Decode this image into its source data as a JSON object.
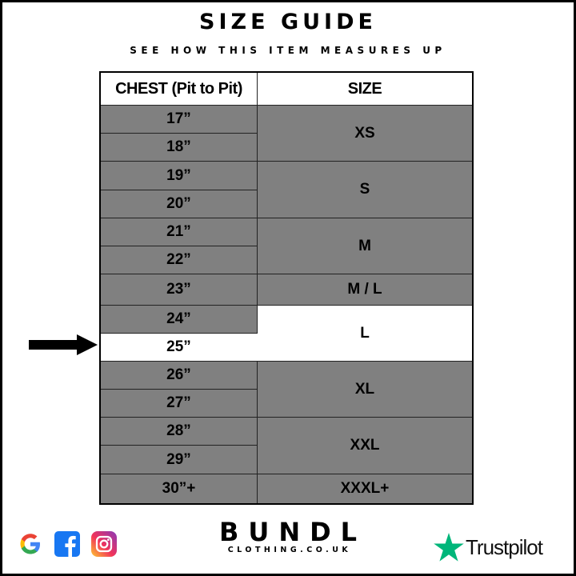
{
  "header": {
    "title": "SIZE GUIDE",
    "subtitle": "SEE HOW THIS ITEM MEASURES UP"
  },
  "table": {
    "columns": [
      "CHEST (Pit to Pit)",
      "SIZE"
    ],
    "chest": [
      "17”",
      "18”",
      "19”",
      "20”",
      "21”",
      "22”",
      "23”",
      "24”",
      "25”",
      "26”",
      "27”",
      "28”",
      "29”",
      "30”+"
    ],
    "sizes": [
      "XS",
      "S",
      "M",
      "M / L",
      "L",
      "XL",
      "XXL",
      "XXXL+"
    ],
    "highlighted_chest": "25”",
    "highlighted_size": "L",
    "grey_color": "#808080",
    "highlight_color": "#ffffff"
  },
  "footer": {
    "social_icons": [
      "google-icon",
      "facebook-icon",
      "instagram-icon"
    ],
    "brand": "BUNDL",
    "brand_sub": "CLOTHING.CO.UK",
    "trustpilot": "Trustpilot",
    "trustpilot_color": "#00b67a"
  }
}
